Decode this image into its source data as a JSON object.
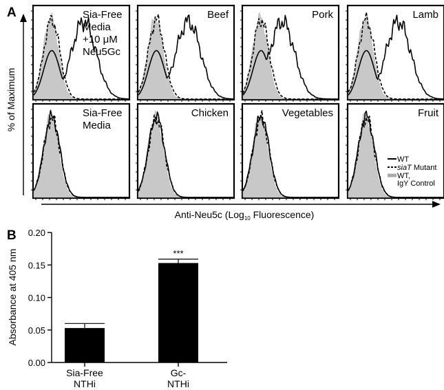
{
  "panel_a": {
    "letter": "A",
    "ylabel": "% of Maximum",
    "xlabel_prefix": "Anti-Neu5c (Log",
    "xlabel_sub": "10",
    "xlabel_suffix": " Fluorescence)",
    "legend": {
      "wt": "WT",
      "mutant_italic": "siaT",
      "mutant_rest": " Mutant",
      "control_line1": "WT,",
      "control_line2": "IgY Control"
    },
    "panels": [
      {
        "lines": [
          "Sia-Free",
          "Media",
          "+10 μM",
          "Neu5Gc"
        ],
        "align": "left",
        "shift": "large"
      },
      {
        "lines": [
          "Beef"
        ],
        "align": "right",
        "shift": "large"
      },
      {
        "lines": [
          "Pork"
        ],
        "align": "right",
        "shift": "medium"
      },
      {
        "lines": [
          "Lamb"
        ],
        "align": "right",
        "shift": "large"
      },
      {
        "lines": [
          "Sia-Free",
          "Media"
        ],
        "align": "left",
        "shift": "none"
      },
      {
        "lines": [
          "Chicken"
        ],
        "align": "right",
        "shift": "none"
      },
      {
        "lines": [
          "Vegetables"
        ],
        "align": "right",
        "shift": "none"
      },
      {
        "lines": [
          "Fruit"
        ],
        "align": "right",
        "shift": "none"
      }
    ]
  },
  "panel_b": {
    "letter": "B",
    "significance": "***"
  },
  "chart_data": [
    {
      "type": "area",
      "title": "",
      "xlabel": "Anti-Neu5c (Log10 Fluorescence)",
      "ylabel": "% of Maximum",
      "series_legend": [
        "WT",
        "siaT Mutant",
        "WT, IgY Control"
      ],
      "panels": [
        "Sia-Free Media +10 μM Neu5Gc",
        "Beef",
        "Pork",
        "Lamb",
        "Sia-Free Media",
        "Chicken",
        "Vegetables",
        "Fruit"
      ]
    },
    {
      "type": "bar",
      "categories": [
        [
          "Sia-Free",
          "NTHi"
        ],
        [
          "Gc-",
          "NTHi"
        ]
      ],
      "values": [
        0.053,
        0.153
      ],
      "errors": [
        0.007,
        0.006
      ],
      "ylabel": "Absorbance at 405 nm",
      "ylim": [
        0,
        0.2
      ],
      "yticks": [
        "0.00",
        "0.05",
        "0.10",
        "0.15",
        "0.20"
      ],
      "annotation": "***"
    }
  ]
}
